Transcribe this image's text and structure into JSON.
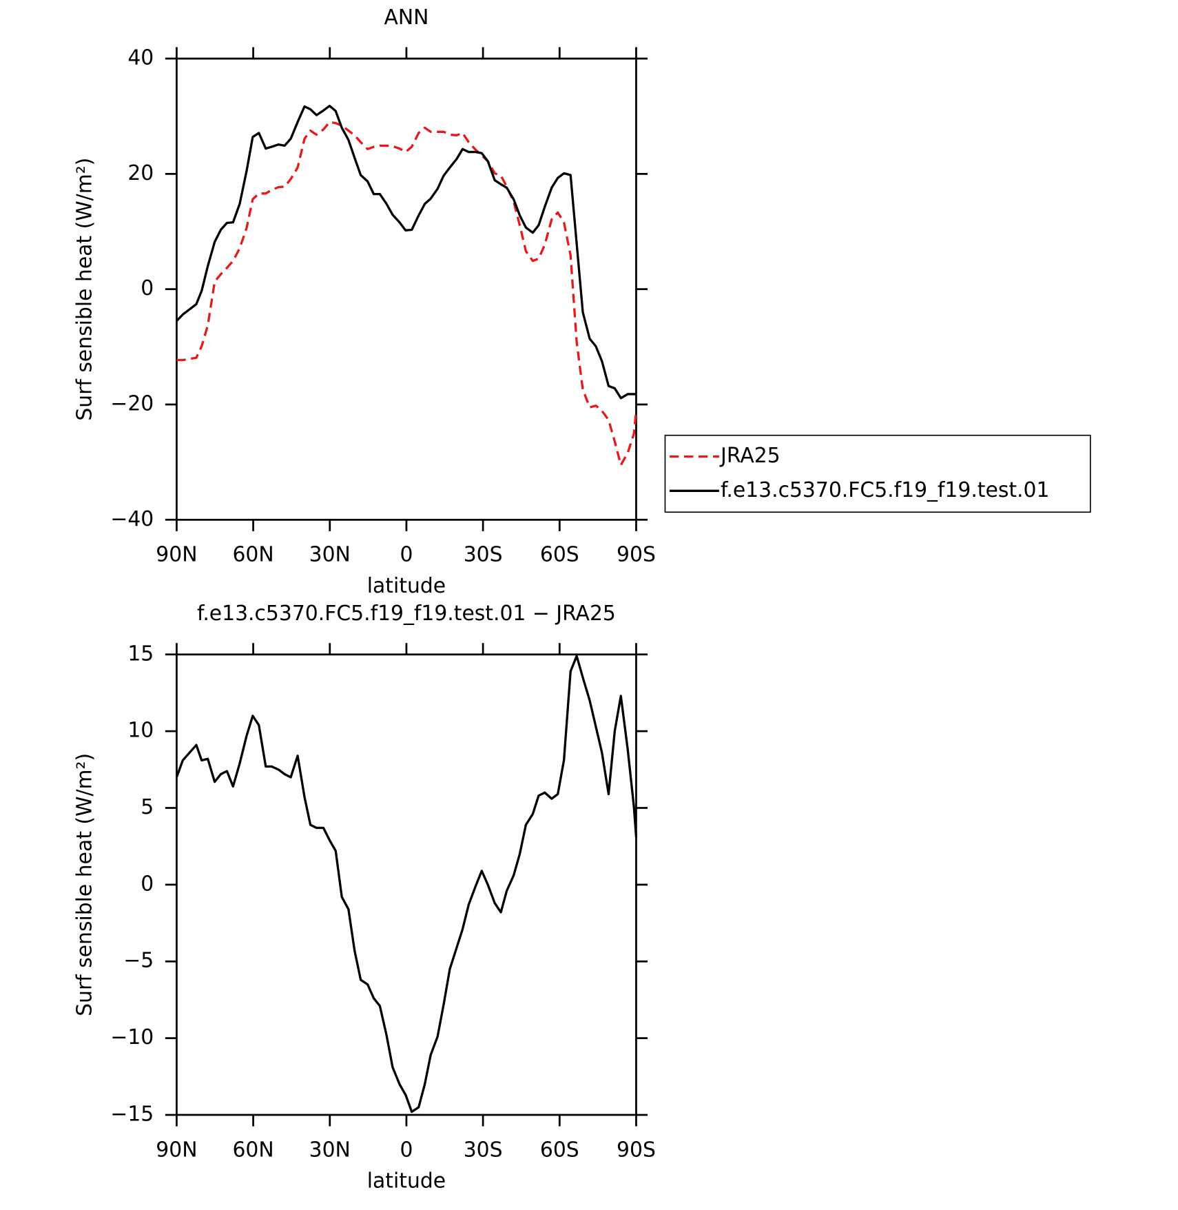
{
  "chart_data": [
    {
      "type": "line",
      "title": "ANN",
      "xlabel": "latitude",
      "ylabel": "Surf sensible heat (W/m²)",
      "x": [
        90,
        87.6,
        82.3,
        80.2,
        77.8,
        75.1,
        72.7,
        70.3,
        67.9,
        65.3,
        62.6,
        60.2,
        57.8,
        55.1,
        52.8,
        50.1,
        47.7,
        45.3,
        42.6,
        39.9,
        37.6,
        35.2,
        32.5,
        30.1,
        27.7,
        25.3,
        22.7,
        20.3,
        17.9,
        15.2,
        12.8,
        10.4,
        7.8,
        5.4,
        2.7,
        0.3,
        -2.1,
        -4.8,
        -7.2,
        -9.5,
        -12.2,
        -14.6,
        -17.0,
        -19.7,
        -22.0,
        -24.4,
        -27.1,
        -29.5,
        -31.9,
        -34.6,
        -37.0,
        -39.3,
        -42.0,
        -44.4,
        -46.8,
        -49.5,
        -51.8,
        -54.2,
        -56.9,
        -59.3,
        -61.7,
        -64.3,
        -66.7,
        -69.1,
        -71.8,
        -74.2,
        -76.6,
        -79.2,
        -81.6,
        -84.0,
        -86.7,
        -89.1,
        -90
      ],
      "series": [
        {
          "name": "JRA25",
          "color": "#e41a1c",
          "line_style": "dashed",
          "values": [
            -12.3,
            -12.3,
            -11.9,
            -9.9,
            -6.3,
            1.3,
            2.6,
            3.7,
            4.9,
            7.1,
            10.6,
            15.6,
            16.6,
            16.6,
            17.2,
            17.7,
            17.8,
            19.1,
            21.1,
            26.1,
            27.5,
            26.8,
            27.7,
            29.0,
            28.8,
            28.4,
            27.5,
            26.7,
            25.5,
            24.3,
            24.7,
            24.9,
            24.9,
            24.8,
            24.4,
            23.8,
            24.7,
            27.1,
            28.0,
            27.3,
            27.3,
            27.3,
            26.8,
            26.7,
            27.1,
            25.5,
            24.2,
            23.2,
            22.2,
            20.1,
            19.7,
            17.8,
            15.2,
            11.1,
            6.6,
            4.9,
            5.3,
            7.7,
            12.1,
            13.3,
            11.6,
            5.9,
            -9.2,
            -17.4,
            -20.5,
            -20.2,
            -21.1,
            -22.7,
            -26.4,
            -30.5,
            -28.4,
            -25.1,
            -21.1
          ]
        },
        {
          "name": "f.e13.c5370.FC5.f19_f19.test.01",
          "color": "#000000",
          "line_style": "solid",
          "values": [
            -5.5,
            -4.4,
            -2.6,
            -0.3,
            4.0,
            8.2,
            10.3,
            11.5,
            11.6,
            14.8,
            20.5,
            26.4,
            27.1,
            24.4,
            24.7,
            25.1,
            24.9,
            26.1,
            29.0,
            31.7,
            31.2,
            30.2,
            31.0,
            31.8,
            30.9,
            28.0,
            25.9,
            22.8,
            19.8,
            18.7,
            16.5,
            16.5,
            14.8,
            12.9,
            11.6,
            10.2,
            10.3,
            12.8,
            14.8,
            15.7,
            17.4,
            19.7,
            21.1,
            22.6,
            24.3,
            23.8,
            23.8,
            23.6,
            22.2,
            18.9,
            18.2,
            17.6,
            15.6,
            12.8,
            10.7,
            9.8,
            11.1,
            14.3,
            17.6,
            19.3,
            20.1,
            19.8,
            7.9,
            -4.0,
            -8.6,
            -9.9,
            -12.5,
            -16.8,
            -17.2,
            -18.9,
            -18.2,
            -18.2,
            -18.2
          ]
        }
      ],
      "xlim": [
        90,
        -90
      ],
      "xticks": [
        {
          "value": 90,
          "label": "90N"
        },
        {
          "value": 60,
          "label": "60N"
        },
        {
          "value": 30,
          "label": "30N"
        },
        0,
        {
          "value": -30,
          "label": "30S"
        },
        {
          "value": -60,
          "label": "60S"
        },
        {
          "value": -90,
          "label": "90S"
        }
      ],
      "ylim": [
        -40,
        40
      ],
      "yticks": [
        {
          "value": -40,
          "label": "−40"
        },
        {
          "value": -20,
          "label": "−20"
        },
        0,
        20,
        40
      ],
      "legend": "right"
    },
    {
      "type": "line",
      "title": "f.e13.c5370.FC5.f19_f19.test.01 − JRA25",
      "xlabel": "latitude",
      "ylabel": "Surf sensible heat (W/m²)",
      "x": [
        90,
        87.6,
        82.3,
        80.2,
        77.8,
        75.1,
        72.7,
        70.3,
        67.9,
        65.3,
        62.6,
        60.2,
        57.8,
        55.1,
        52.8,
        50.1,
        47.7,
        45.3,
        42.6,
        39.9,
        37.6,
        35.2,
        32.5,
        30.1,
        27.7,
        25.3,
        22.7,
        20.3,
        17.9,
        15.2,
        12.8,
        10.4,
        7.8,
        5.4,
        2.7,
        0.3,
        -2.1,
        -4.8,
        -7.2,
        -9.5,
        -12.2,
        -14.6,
        -17.0,
        -19.7,
        -22.0,
        -24.4,
        -27.1,
        -29.5,
        -31.9,
        -34.6,
        -37.0,
        -39.3,
        -42.0,
        -44.4,
        -46.8,
        -49.5,
        -51.8,
        -54.2,
        -56.9,
        -59.3,
        -61.7,
        -64.3,
        -66.7,
        -69.1,
        -71.8,
        -74.2,
        -76.6,
        -79.2,
        -81.6,
        -84.0,
        -86.7,
        -89.1,
        -90
      ],
      "values": [
        7.0,
        8.1,
        9.1,
        8.1,
        8.2,
        6.7,
        7.2,
        7.4,
        6.4,
        7.9,
        9.7,
        11.0,
        10.4,
        7.7,
        7.7,
        7.5,
        7.2,
        7.0,
        8.4,
        5.7,
        3.9,
        3.7,
        3.7,
        2.9,
        2.2,
        -0.8,
        -1.6,
        -4.3,
        -6.2,
        -6.5,
        -7.4,
        -7.9,
        -9.8,
        -11.9,
        -13.0,
        -13.7,
        -14.8,
        -14.5,
        -13.0,
        -11.1,
        -9.9,
        -7.8,
        -5.5,
        -4.1,
        -2.9,
        -1.3,
        -0.1,
        0.9,
        0.0,
        -1.2,
        -1.8,
        -0.4,
        0.6,
        2.0,
        3.9,
        4.6,
        5.8,
        6.0,
        5.6,
        5.9,
        8.1,
        13.9,
        14.9,
        13.5,
        12.0,
        10.3,
        8.6,
        5.9,
        10.0,
        12.3,
        8.8,
        5.1,
        3.1
      ],
      "color": "#000000",
      "xlim": [
        90,
        -90
      ],
      "xticks": [
        {
          "value": 90,
          "label": "90N"
        },
        {
          "value": 60,
          "label": "60N"
        },
        {
          "value": 30,
          "label": "30N"
        },
        0,
        {
          "value": -30,
          "label": "30S"
        },
        {
          "value": -60,
          "label": "60S"
        },
        {
          "value": -90,
          "label": "90S"
        }
      ],
      "ylim": [
        -15,
        15
      ],
      "yticks": [
        {
          "value": -15,
          "label": "−15"
        },
        {
          "value": -10,
          "label": "−10"
        },
        {
          "value": -5,
          "label": "−5"
        },
        0,
        5,
        10,
        15
      ]
    }
  ]
}
